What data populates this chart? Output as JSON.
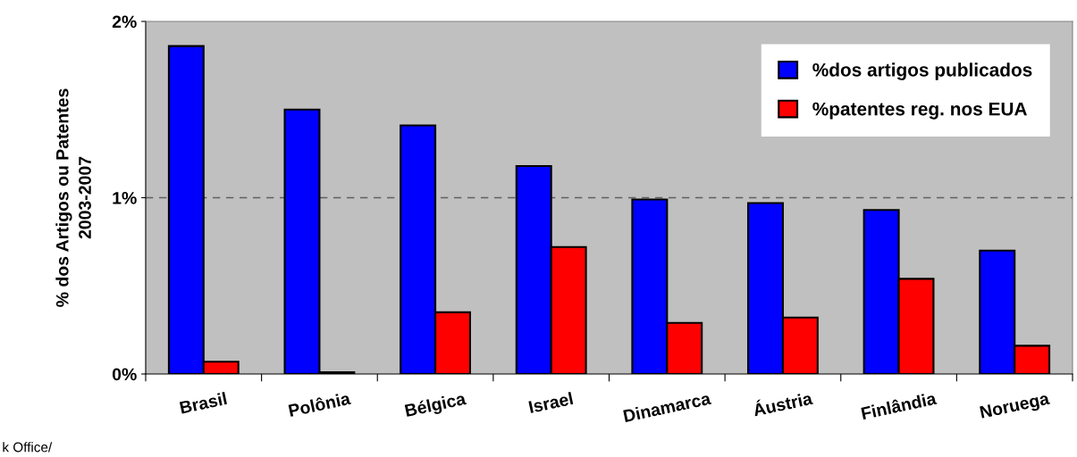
{
  "chart_data": {
    "type": "bar",
    "ylabel": "% dos Artigos ou Patentes\n2003-2007",
    "categories": [
      "Brasil",
      "Polônia",
      "Bélgica",
      "Israel",
      "Dinamarca",
      "Áustria",
      "Finlândia",
      "Noruega"
    ],
    "series": [
      {
        "name": "%dos artigos publicados",
        "color": "#0000ff",
        "values": [
          1.86,
          1.5,
          1.41,
          1.18,
          0.99,
          0.97,
          0.93,
          0.7
        ]
      },
      {
        "name": "%patentes reg. nos EUA",
        "color": "#ff0000",
        "values": [
          0.07,
          0.01,
          0.35,
          0.72,
          0.29,
          0.32,
          0.54,
          0.16
        ]
      }
    ],
    "ylim": [
      0,
      2
    ],
    "yticks": [
      {
        "value": 0,
        "label": "0%"
      },
      {
        "value": 1,
        "label": "1%"
      },
      {
        "value": 2,
        "label": "2%"
      }
    ],
    "ref_lines": [
      {
        "axis": "y",
        "value": 1,
        "color": "#606060",
        "line_style": "dashed"
      }
    ],
    "grid": false,
    "legend": "top right",
    "annotations": [
      "k Office/"
    ]
  }
}
